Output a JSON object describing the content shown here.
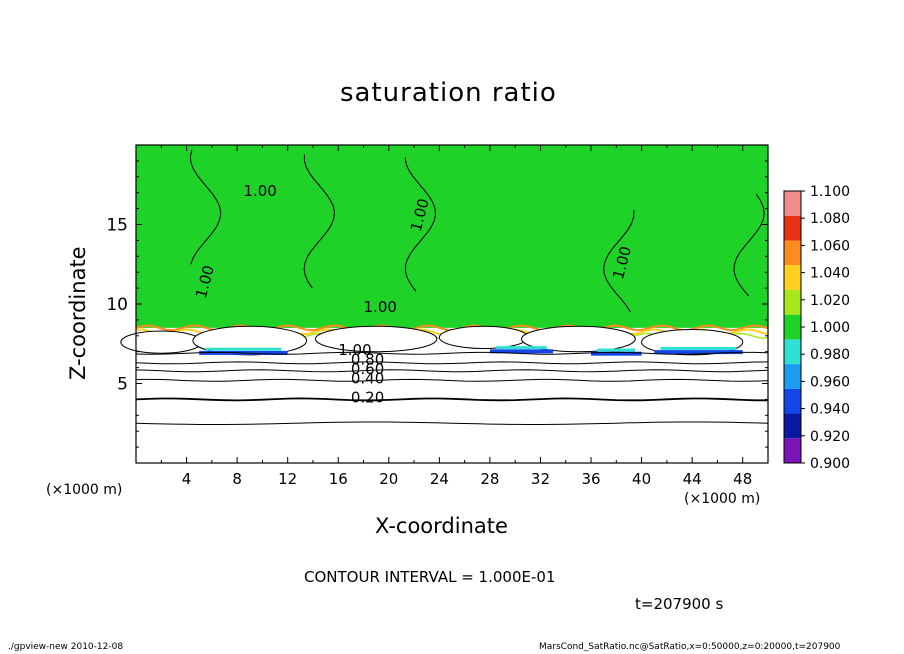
{
  "chart_data": {
    "type": "heatmap",
    "title": "saturation ratio",
    "xlabel": "X-coordinate",
    "ylabel": "Z-coordinate",
    "x_unit": "(×1000 m)",
    "xlim": [
      0,
      50
    ],
    "ylim": [
      0,
      20
    ],
    "x_ticks": [
      4,
      8,
      12,
      16,
      20,
      24,
      28,
      32,
      36,
      40,
      44,
      48
    ],
    "y_ticks": [
      5,
      10,
      15
    ],
    "colorbar": {
      "levels": [
        "0.900",
        "0.920",
        "0.940",
        "0.960",
        "0.980",
        "1.000",
        "1.020",
        "1.040",
        "1.060",
        "1.080",
        "1.100"
      ],
      "colors": [
        "#7a14b4",
        "#0a1aa0",
        "#1446e6",
        "#1a9cf0",
        "#2ee0d2",
        "#1ed228",
        "#a8e61e",
        "#ffd01e",
        "#ff8a1e",
        "#e63214",
        "#f08c8c"
      ]
    },
    "contour_labels": [
      "0.20",
      "0.40",
      "0.60",
      "0.80",
      "1.00",
      "1.00",
      "1.00",
      "1.00",
      "1.00",
      "1.00"
    ],
    "contour_interval": "CONTOUR INTERVAL = 1.000E-01",
    "time": "t=207900 s",
    "saturated_layer_base_z": 8.5,
    "stratified_contour_levels": [
      {
        "value": 0.2,
        "z": 4.0
      },
      {
        "value": 0.4,
        "z": 5.2
      },
      {
        "value": 0.6,
        "z": 5.8
      },
      {
        "value": 0.8,
        "z": 6.3
      },
      {
        "value": 1.0,
        "z": 6.9
      }
    ]
  },
  "footer": {
    "left": "./gpview-new   2010-12-08",
    "right": "MarsCond_SatRatio.nc@SatRatio,x=0:50000,z=0:20000,t=207900"
  }
}
